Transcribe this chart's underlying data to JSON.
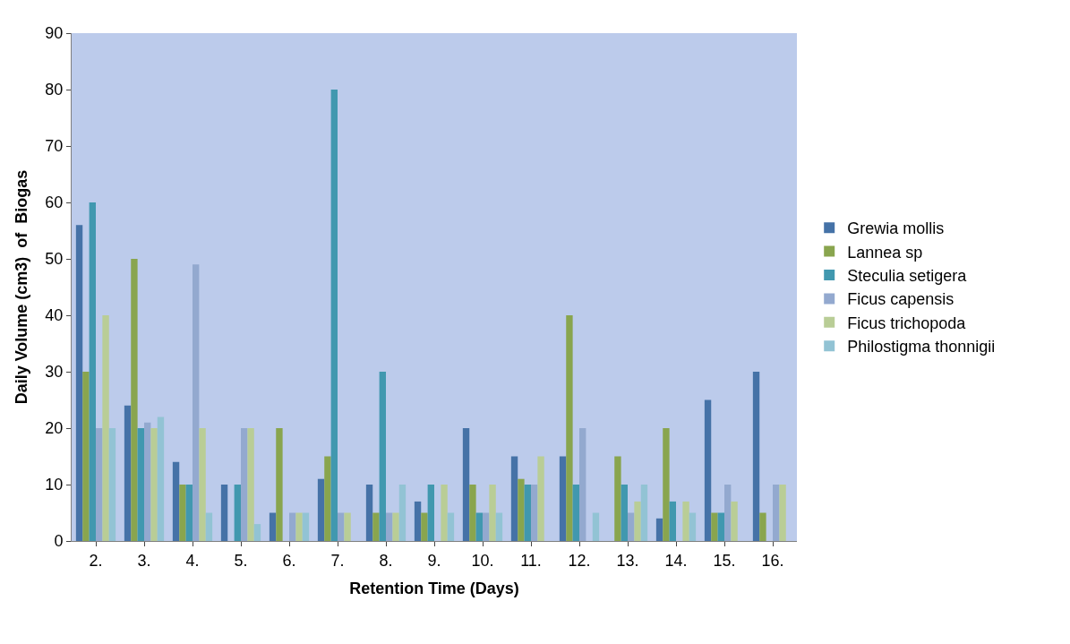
{
  "chart_data": {
    "type": "bar",
    "xlabel": "Retention Time (Days)",
    "ylabel": "Daily Volume (cm3)  of  Biogas",
    "categories": [
      "2.",
      "3.",
      "4.",
      "5.",
      "6.",
      "7.",
      "8.",
      "9.",
      "10.",
      "11.",
      "12.",
      "13.",
      "14.",
      "15.",
      "16."
    ],
    "series": [
      {
        "name": "Grewia mollis",
        "color": "#4572a7",
        "values": [
          56,
          24,
          14,
          10,
          5,
          11,
          10,
          7,
          20,
          15,
          15,
          null,
          4,
          25,
          30
        ]
      },
      {
        "name": "Lannea sp",
        "color": "#89a54e",
        "values": [
          30,
          50,
          10,
          null,
          20,
          15,
          5,
          5,
          10,
          11,
          40,
          15,
          20,
          5,
          5
        ]
      },
      {
        "name": "Steculia setigera",
        "color": "#4198af",
        "values": [
          60,
          20,
          10,
          10,
          null,
          80,
          30,
          10,
          5,
          10,
          10,
          10,
          7,
          5,
          null
        ]
      },
      {
        "name": "Ficus capensis",
        "color": "#93a9cf",
        "values": [
          20,
          21,
          49,
          20,
          5,
          5,
          5,
          null,
          5,
          10,
          20,
          5,
          null,
          10,
          10
        ]
      },
      {
        "name": "Ficus trichopoda",
        "color": "#b9cd96",
        "values": [
          40,
          20,
          20,
          20,
          5,
          5,
          5,
          10,
          10,
          15,
          null,
          7,
          7,
          7,
          10
        ]
      },
      {
        "name": "Philostigma thonnigii",
        "color": "#92c3d4",
        "values": [
          20,
          22,
          5,
          3,
          5,
          null,
          10,
          5,
          5,
          null,
          5,
          10,
          5,
          null,
          null
        ]
      }
    ],
    "ylim": [
      0,
      90
    ],
    "yticks": [
      0,
      10,
      20,
      30,
      40,
      50,
      60,
      70,
      80,
      90
    ],
    "grid": false,
    "legend": "right"
  }
}
